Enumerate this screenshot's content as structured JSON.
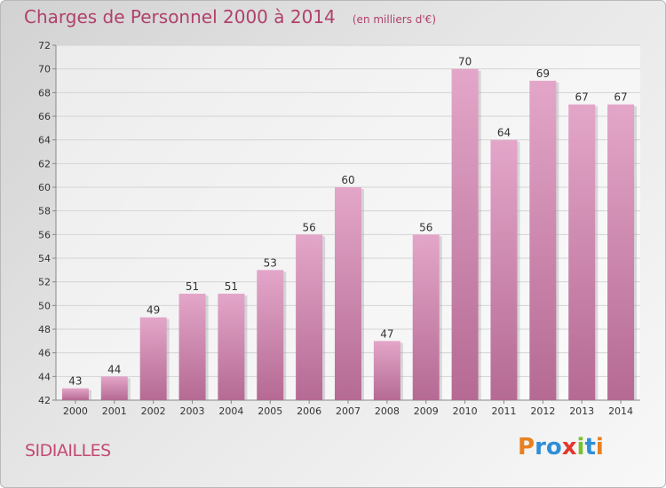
{
  "chart_data": {
    "type": "bar",
    "title": "Charges de Personnel 2000 à 2014",
    "subtitle": "(en milliers d'€)",
    "categories": [
      "2000",
      "2001",
      "2002",
      "2003",
      "2004",
      "2005",
      "2006",
      "2007",
      "2008",
      "2009",
      "2010",
      "2011",
      "2012",
      "2013",
      "2014"
    ],
    "values": [
      43,
      44,
      49,
      51,
      51,
      53,
      56,
      60,
      47,
      56,
      70,
      64,
      69,
      67,
      67
    ],
    "ylim": [
      42,
      72
    ],
    "yticks": [
      42,
      44,
      46,
      48,
      50,
      52,
      54,
      56,
      58,
      60,
      62,
      64,
      66,
      68,
      70,
      72
    ],
    "grid": true,
    "bar_color": "#d889b4"
  },
  "footer": {
    "commune": "SIDIAILLES",
    "logo_letters": [
      "P",
      "r",
      "o",
      "x",
      "i",
      "t",
      "i"
    ],
    "logo_colors": [
      "#e8801e",
      "#2f8fd6",
      "#2f8fd6",
      "#e2382f",
      "#7bbf2e",
      "#2f8fd6",
      "#e8801e"
    ]
  }
}
